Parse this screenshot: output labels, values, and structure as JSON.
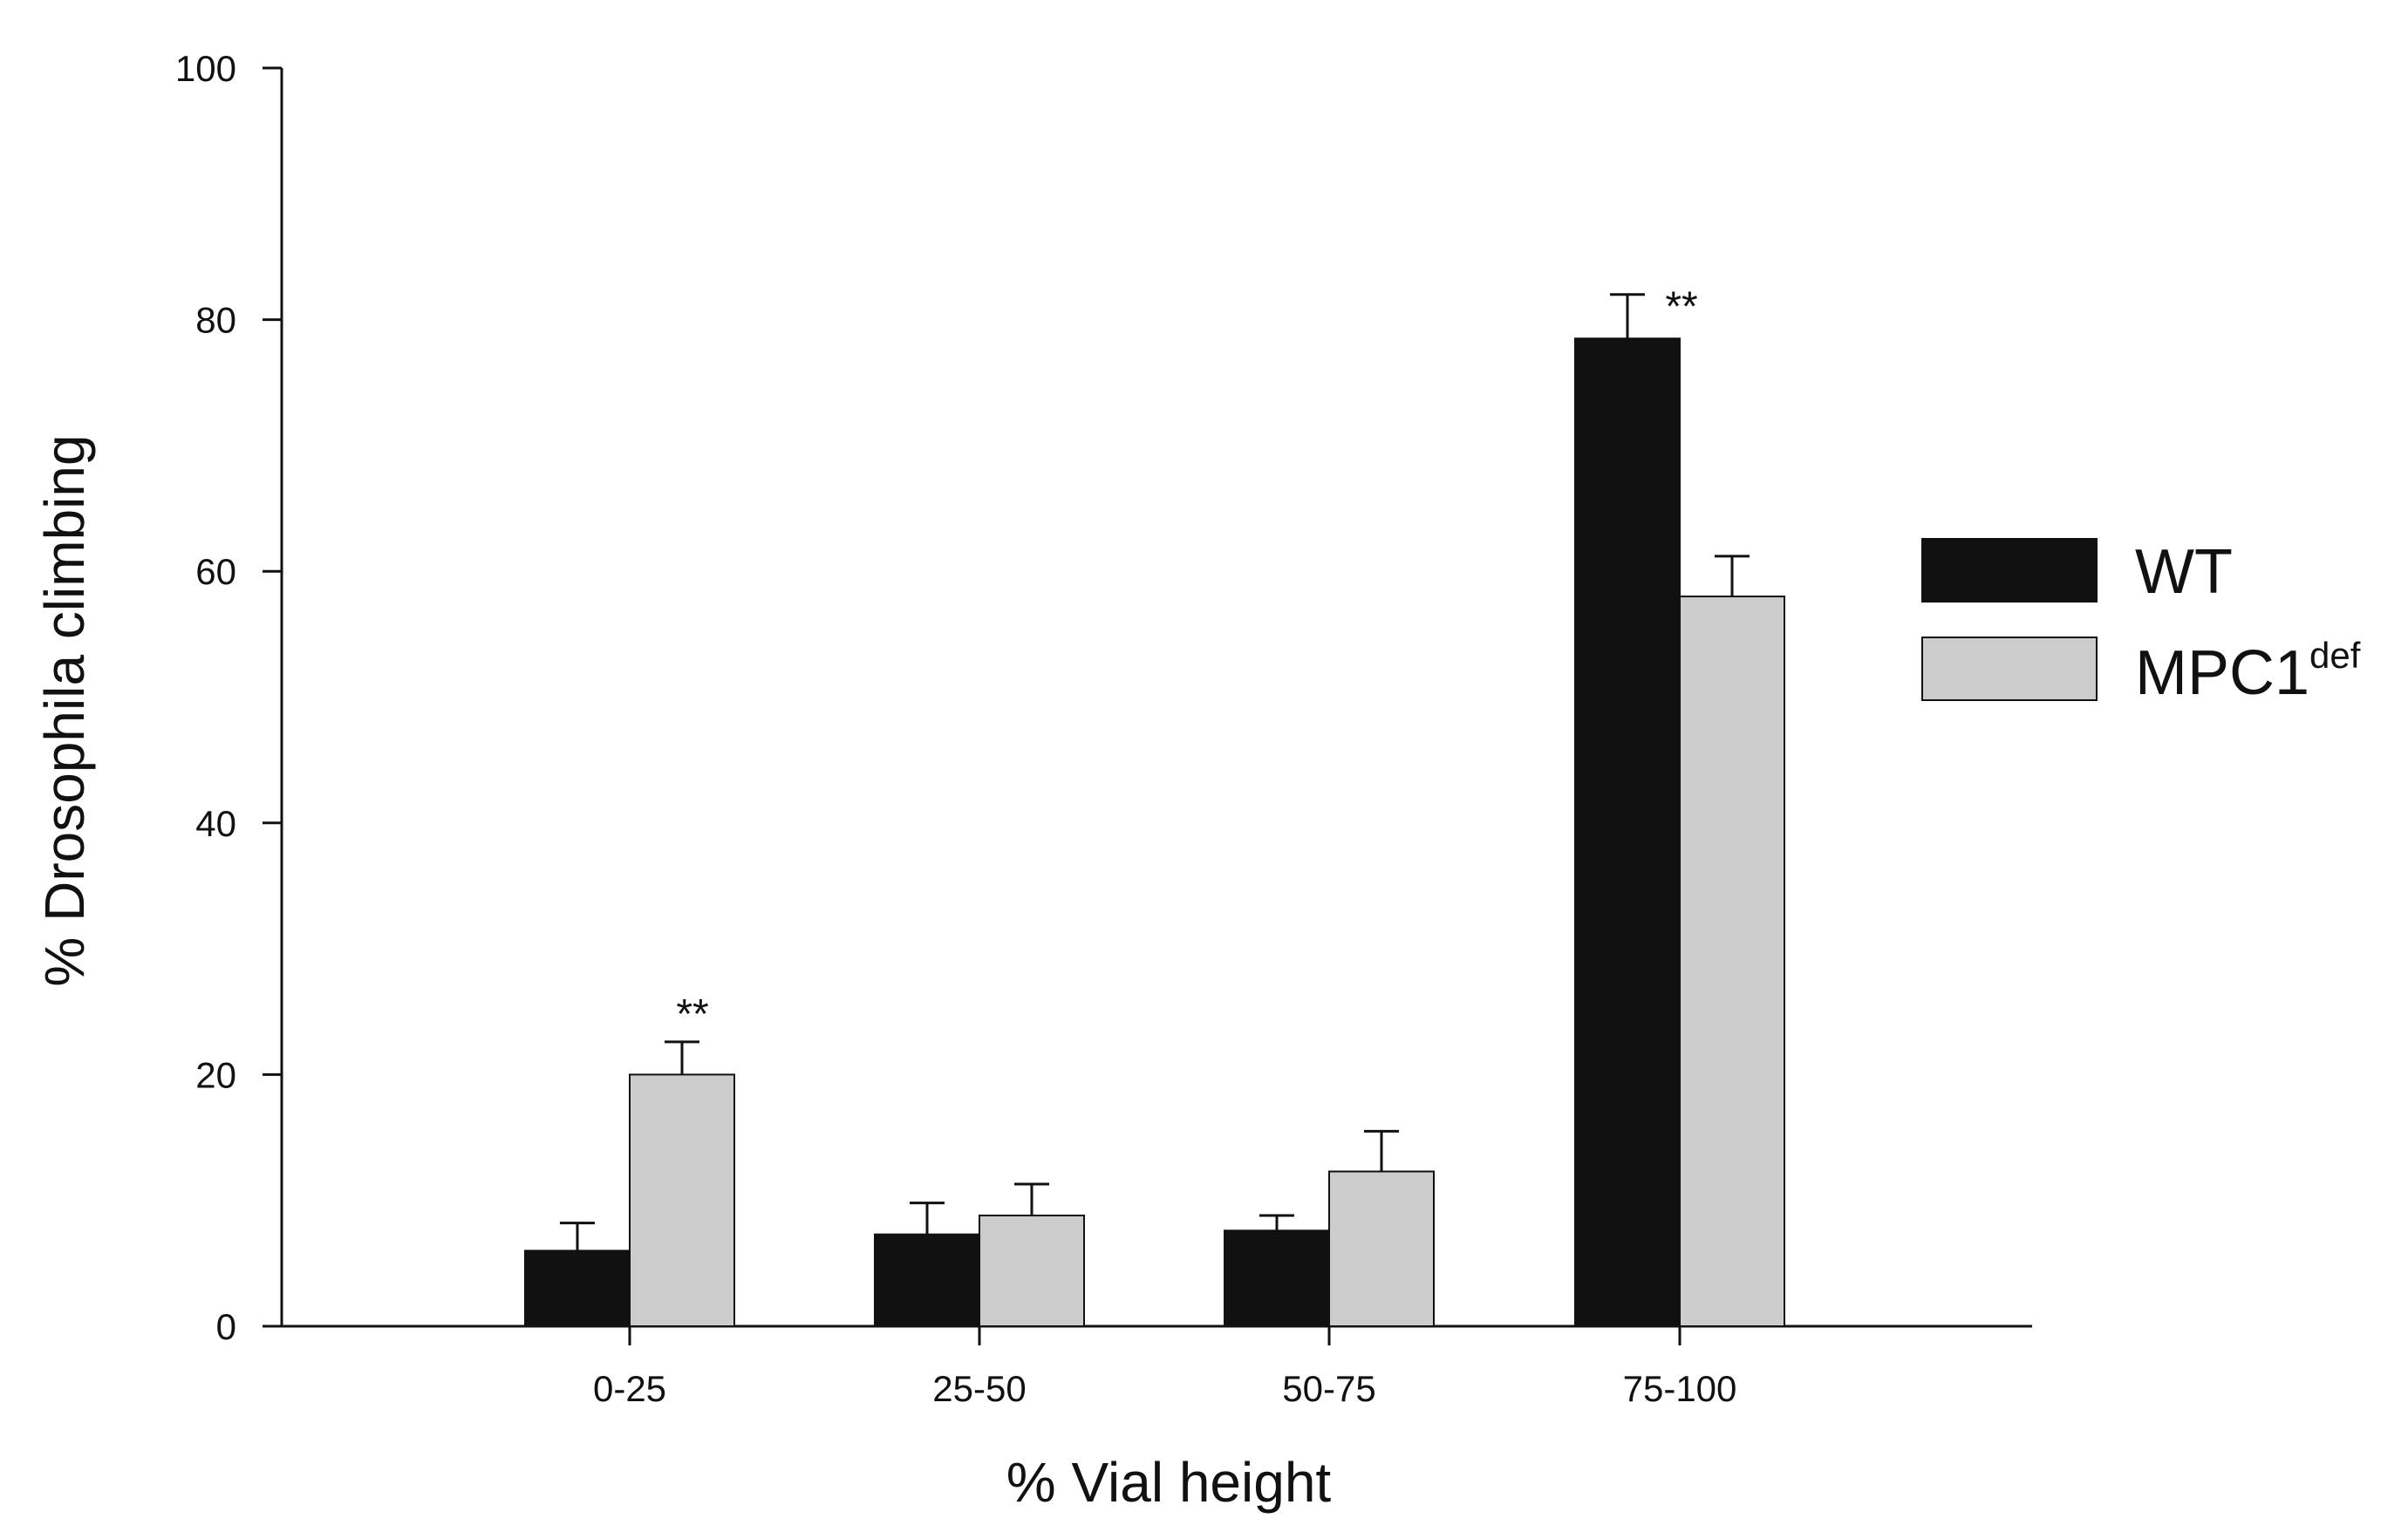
{
  "chart_data": {
    "type": "bar",
    "title": "",
    "xlabel": "% Vial height",
    "ylabel": "% Drosophila climbing",
    "categories": [
      "0-25",
      "25-50",
      "50-75",
      "75-100"
    ],
    "ylim": [
      0,
      100
    ],
    "yticks": [
      0,
      20,
      40,
      60,
      80,
      100
    ],
    "grid": false,
    "legend_position": "right",
    "series": [
      {
        "name": "WT",
        "color": "#111111",
        "values": [
          6,
          7.3,
          7.6,
          78.5
        ],
        "errors": [
          2.2,
          2.5,
          1.2,
          3.5
        ]
      },
      {
        "name": "MPC1",
        "name_superscript": "def",
        "color": "#cccccc",
        "values": [
          20,
          8.8,
          12.3,
          58
        ],
        "errors": [
          2.6,
          2.5,
          3.2,
          3.2
        ]
      }
    ],
    "annotations": [
      {
        "text": "**",
        "category": "0-25",
        "series": "MPC1"
      },
      {
        "text": "**",
        "category": "75-100",
        "series": "WT"
      }
    ]
  }
}
